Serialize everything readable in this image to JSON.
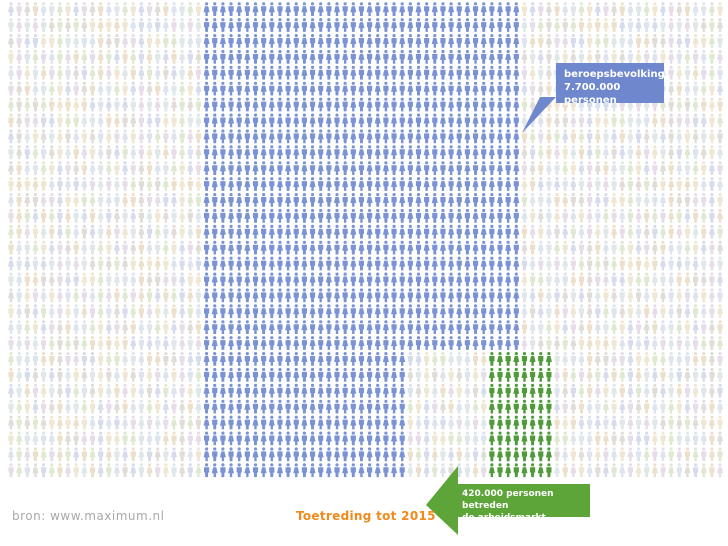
{
  "callouts": {
    "workforce_line1": "beroepsbevolking",
    "workforce_line2": "7.700.000 personen",
    "entrants_line1": "420.000 personen betreden",
    "entrants_line2": "de arbeidsmarkt"
  },
  "footer": {
    "source": "bron: www.maximum.nl",
    "title": "Toetreding tot 2015"
  },
  "colors": {
    "workforce": "#7b93d4",
    "entrants": "#4f9b3a",
    "background_people": [
      "#d7dced",
      "#ece0cc",
      "#dfe9d2",
      "#e6dde9",
      "#dde4ee",
      "#efe7d4",
      "#e0ddd9",
      "#dfe7e9"
    ],
    "accent_title": "#f08a1c",
    "callout_blue": "#6f87cc",
    "callout_green": "#5da439"
  }
}
